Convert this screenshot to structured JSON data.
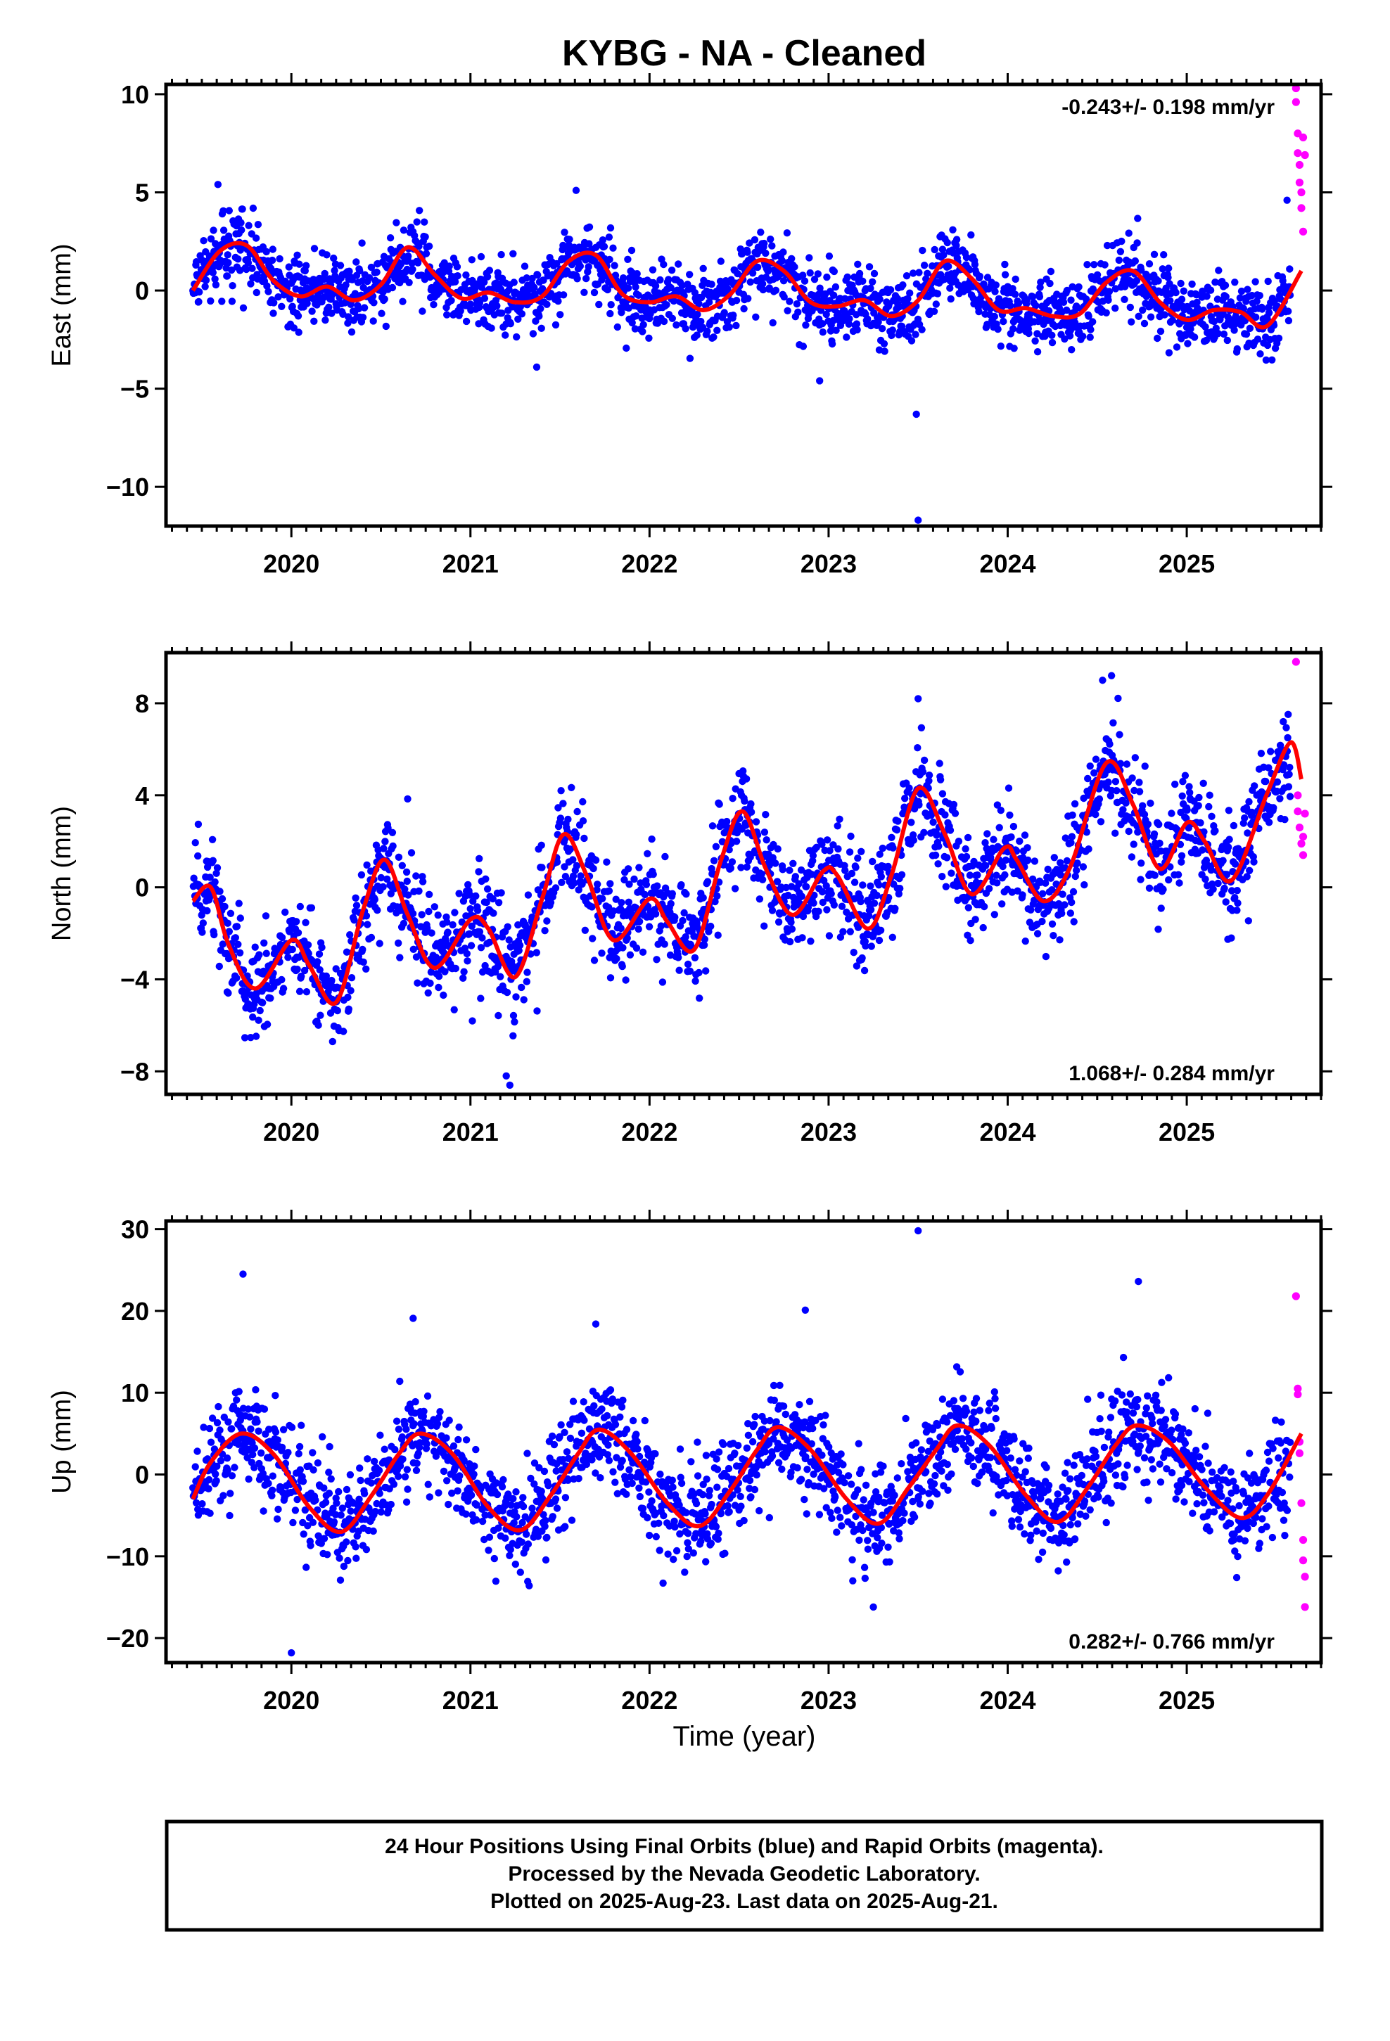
{
  "title": "KYBG  - NA - Cleaned",
  "colors": {
    "final": "#0000ff",
    "rapid": "#ff00ff",
    "model": "#ff0000",
    "axis": "#000000"
  },
  "x_title": "Time (year)",
  "footer": {
    "line1": "24 Hour Positions Using Final Orbits (blue) and Rapid Orbits (magenta).",
    "line2": "Processed by the Nevada Geodetic Laboratory.",
    "line3": "Plotted on 2025-Aug-23. Last data on 2025-Aug-21."
  },
  "chart_data": [
    {
      "type": "scatter",
      "ylabel": "East (mm)",
      "rate": "-0.243+/- 0.198 mm/yr",
      "rate_placement": "top-right",
      "xlim": [
        2019.3,
        2025.75
      ],
      "ylim": [
        -12,
        10.5
      ],
      "xticks": [
        2020,
        2021,
        2022,
        2023,
        2024,
        2025
      ],
      "yticks": [
        10,
        5,
        0,
        -5,
        -10
      ],
      "ytick_labels": [
        "10",
        "5",
        "0",
        "−5",
        "−10"
      ],
      "model": {
        "name": "seasonal fit",
        "x": [
          2019.45,
          2019.6,
          2019.75,
          2019.9,
          2020.05,
          2020.2,
          2020.35,
          2020.5,
          2020.65,
          2020.8,
          2020.95,
          2021.1,
          2021.25,
          2021.4,
          2021.55,
          2021.7,
          2021.85,
          2022.0,
          2022.15,
          2022.3,
          2022.45,
          2022.6,
          2022.75,
          2022.9,
          2023.05,
          2023.2,
          2023.35,
          2023.5,
          2023.65,
          2023.8,
          2023.95,
          2024.1,
          2024.25,
          2024.4,
          2024.55,
          2024.7,
          2024.85,
          2025.0,
          2025.15,
          2025.3,
          2025.45,
          2025.64
        ],
        "y": [
          0.0,
          2.0,
          2.3,
          0.5,
          -0.3,
          0.2,
          -0.5,
          0.3,
          2.2,
          0.8,
          -0.4,
          -0.1,
          -0.6,
          -0.3,
          1.5,
          1.8,
          -0.2,
          -0.6,
          -0.3,
          -1.0,
          -0.2,
          1.5,
          1.0,
          -0.6,
          -0.8,
          -0.5,
          -1.3,
          -0.5,
          1.5,
          0.6,
          -1.0,
          -0.9,
          -1.3,
          -1.2,
          0.4,
          1.0,
          -0.6,
          -1.5,
          -1.0,
          -1.1,
          -1.8,
          1.0
        ]
      },
      "final_series": {
        "name": "Final Orbits",
        "x_start": 2019.45,
        "x_end": 2025.58,
        "noise_mm": 0.9
      },
      "rapid_points": {
        "x": [
          2025.61,
          2025.61,
          2025.62,
          2025.62,
          2025.63,
          2025.63,
          2025.64,
          2025.64,
          2025.65,
          2025.65,
          2025.66
        ],
        "y": [
          10.3,
          9.6,
          8.0,
          7.0,
          6.4,
          5.5,
          5.0,
          4.2,
          3.0,
          7.8,
          6.9
        ]
      },
      "outliers": {
        "x": [
          2023.5,
          2023.49,
          2022.95,
          2021.37,
          2019.59,
          2021.59,
          2025.56
        ],
        "y": [
          -11.7,
          -6.3,
          -4.6,
          -3.9,
          5.4,
          5.1,
          4.6
        ]
      }
    },
    {
      "type": "scatter",
      "ylabel": "North (mm)",
      "rate": "1.068+/- 0.284 mm/yr",
      "rate_placement": "bottom-right",
      "xlim": [
        2019.3,
        2025.75
      ],
      "ylim": [
        -9,
        10.2
      ],
      "xticks": [
        2020,
        2021,
        2022,
        2023,
        2024,
        2025
      ],
      "yticks": [
        8,
        4,
        0,
        -4,
        -8
      ],
      "ytick_labels": [
        "8",
        "4",
        "0",
        "−4",
        "−8"
      ],
      "model": {
        "name": "seasonal fit",
        "x": [
          2019.45,
          2019.55,
          2019.65,
          2019.8,
          2020.0,
          2020.1,
          2020.25,
          2020.4,
          2020.52,
          2020.65,
          2020.8,
          2021.0,
          2021.1,
          2021.25,
          2021.4,
          2021.52,
          2021.65,
          2021.8,
          2022.0,
          2022.1,
          2022.25,
          2022.4,
          2022.52,
          2022.65,
          2022.8,
          2022.97,
          2023.05,
          2023.22,
          2023.35,
          2023.5,
          2023.65,
          2023.8,
          2023.98,
          2024.05,
          2024.2,
          2024.35,
          2024.55,
          2024.7,
          2024.85,
          2025.0,
          2025.1,
          2025.25,
          2025.45,
          2025.58,
          2025.64
        ],
        "y": [
          -0.6,
          0.0,
          -2.5,
          -4.4,
          -2.3,
          -3.4,
          -5.0,
          -1.0,
          1.2,
          -1.2,
          -3.5,
          -1.4,
          -1.8,
          -3.9,
          -0.5,
          2.3,
          0.5,
          -2.3,
          -0.5,
          -1.5,
          -2.7,
          1.2,
          3.3,
          0.8,
          -1.2,
          0.7,
          0.5,
          -1.8,
          0.5,
          4.3,
          2.3,
          -0.3,
          1.7,
          1.2,
          -0.6,
          0.9,
          5.4,
          3.6,
          0.8,
          2.8,
          2.0,
          0.3,
          4.1,
          6.3,
          4.7
        ]
      },
      "final_series": {
        "name": "Final Orbits",
        "x_start": 2019.45,
        "x_end": 2025.58,
        "noise_mm": 1.1
      },
      "rapid_points": {
        "x": [
          2025.61,
          2025.62,
          2025.62,
          2025.63,
          2025.64,
          2025.65,
          2025.65,
          2025.66
        ],
        "y": [
          9.8,
          4.0,
          3.3,
          2.6,
          1.9,
          1.4,
          2.2,
          3.2
        ]
      },
      "outliers": {
        "x": [
          2021.22,
          2023.5,
          2024.58,
          2024.53,
          2025.28,
          2021.2
        ],
        "y": [
          -8.6,
          8.2,
          9.2,
          9.0,
          -1.0,
          -8.2
        ]
      }
    },
    {
      "type": "scatter",
      "ylabel": "Up (mm)",
      "rate": "0.282+/- 0.766 mm/yr",
      "rate_placement": "bottom-right",
      "xlim": [
        2019.3,
        2025.75
      ],
      "ylim": [
        -23,
        31
      ],
      "xticks": [
        2020,
        2021,
        2022,
        2023,
        2024,
        2025
      ],
      "yticks": [
        30,
        20,
        10,
        0,
        -10,
        -20
      ],
      "ytick_labels": [
        "30",
        "20",
        "10",
        "0",
        "−10",
        "−20"
      ],
      "model": {
        "name": "seasonal fit",
        "x": [
          2019.45,
          2019.55,
          2019.72,
          2019.9,
          2020.1,
          2020.28,
          2020.45,
          2020.6,
          2020.72,
          2020.9,
          2021.1,
          2021.28,
          2021.45,
          2021.6,
          2021.72,
          2021.9,
          2022.1,
          2022.28,
          2022.45,
          2022.6,
          2022.72,
          2022.9,
          2023.1,
          2023.28,
          2023.45,
          2023.6,
          2023.72,
          2023.9,
          2024.1,
          2024.28,
          2024.45,
          2024.6,
          2024.72,
          2024.9,
          2025.1,
          2025.3,
          2025.45,
          2025.64
        ],
        "y": [
          -3.0,
          1.5,
          5.0,
          2.5,
          -4.0,
          -7.0,
          -2.5,
          2.5,
          5.0,
          2.5,
          -4.0,
          -6.8,
          -2.5,
          2.5,
          5.5,
          2.5,
          -3.5,
          -6.3,
          -2.0,
          3.0,
          5.8,
          3.0,
          -3.0,
          -6.0,
          -1.5,
          3.0,
          6.0,
          3.5,
          -2.5,
          -5.8,
          -1.5,
          3.5,
          6.0,
          4.0,
          -1.5,
          -5.3,
          -2.5,
          5.0
        ]
      },
      "final_series": {
        "name": "Final Orbits",
        "x_start": 2019.45,
        "x_end": 2025.58,
        "noise_mm": 3.2
      },
      "rapid_points": {
        "x": [
          2025.61,
          2025.62,
          2025.62,
          2025.63,
          2025.63,
          2025.64,
          2025.65,
          2025.65,
          2025.66,
          2025.66
        ],
        "y": [
          21.8,
          10.5,
          9.8,
          4.0,
          2.6,
          -3.5,
          -8.0,
          -10.5,
          -12.5,
          -16.2
        ]
      },
      "outliers": {
        "x": [
          2023.5,
          2019.73,
          2024.73,
          2022.87,
          2020.68,
          2021.7,
          2020.0,
          2023.25
        ],
        "y": [
          29.8,
          24.5,
          23.6,
          20.1,
          19.1,
          18.4,
          -21.8,
          -16.2
        ]
      }
    }
  ]
}
